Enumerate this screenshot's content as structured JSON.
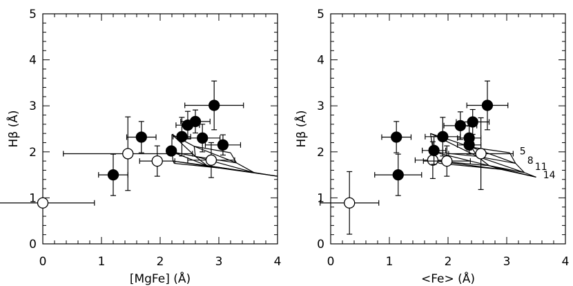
{
  "chart_data": [
    {
      "type": "scatter",
      "xlabel": "[MgFe] (Å)",
      "ylabel": "Hβ (Å)",
      "xlim": [
        0,
        4
      ],
      "ylim": [
        0,
        5
      ],
      "x_ticks": [
        "0",
        "1",
        "2",
        "3",
        "4"
      ],
      "y_ticks": [
        "0",
        "1",
        "2",
        "3",
        "4",
        "5"
      ],
      "filled_points": [
        {
          "x": 1.2,
          "y": 1.5,
          "xerr": 0.25,
          "yerr": 0.45
        },
        {
          "x": 1.68,
          "y": 2.32,
          "xerr": 0.25,
          "yerr": 0.34
        },
        {
          "x": 2.19,
          "y": 2.02,
          "xerr": 0.08,
          "yerr": 0.08
        },
        {
          "x": 2.37,
          "y": 2.33,
          "xerr": 0.15,
          "yerr": 0.42
        },
        {
          "x": 2.47,
          "y": 2.58,
          "xerr": 0.2,
          "yerr": 0.3
        },
        {
          "x": 2.6,
          "y": 2.66,
          "xerr": 0.25,
          "yerr": 0.25
        },
        {
          "x": 2.72,
          "y": 2.3,
          "xerr": 0.3,
          "yerr": 0.3
        },
        {
          "x": 2.92,
          "y": 3.01,
          "xerr": 0.5,
          "yerr": 0.53
        },
        {
          "x": 3.07,
          "y": 2.15,
          "xerr": 0.3,
          "yerr": 0.22
        }
      ],
      "open_points": [
        {
          "x": 0.0,
          "y": 0.89,
          "xerr": 0.88,
          "yerr": 0.0
        },
        {
          "x": 1.45,
          "y": 1.96,
          "xerr": 1.1,
          "yerr": 0.8
        },
        {
          "x": 1.95,
          "y": 1.8,
          "xerr": 0.3,
          "yerr": 0.33
        },
        {
          "x": 2.87,
          "y": 1.82,
          "xerr": 0.4,
          "yerr": 0.38
        }
      ],
      "model_grid": {
        "rows": [
          [
            [
              2.2,
              2.38
            ],
            [
              2.58,
              2.12
            ],
            [
              3.2,
              1.98
            ]
          ],
          [
            [
              2.2,
              2.0
            ],
            [
              2.6,
              1.9
            ],
            [
              3.3,
              1.76
            ]
          ],
          [
            [
              2.22,
              1.8
            ],
            [
              2.8,
              1.7
            ],
            [
              3.6,
              1.55
            ]
          ],
          [
            [
              2.24,
              1.75
            ],
            [
              3.0,
              1.65
            ],
            [
              4.0,
              1.47
            ]
          ]
        ]
      }
    },
    {
      "type": "scatter",
      "xlabel": "<Fe> (Å)",
      "ylabel": "Hβ (Å)",
      "xlim": [
        0,
        4
      ],
      "ylim": [
        0,
        5
      ],
      "x_ticks": [
        "0",
        "1",
        "2",
        "3",
        "4"
      ],
      "y_ticks": [
        "0",
        "1",
        "2",
        "3",
        "4",
        "5"
      ],
      "filled_points": [
        {
          "x": 1.15,
          "y": 1.5,
          "xerr": 0.4,
          "yerr": 0.45
        },
        {
          "x": 1.12,
          "y": 2.32,
          "xerr": 0.25,
          "yerr": 0.34
        },
        {
          "x": 1.76,
          "y": 2.03,
          "xerr": 0.2,
          "yerr": 0.3
        },
        {
          "x": 1.91,
          "y": 2.33,
          "xerr": 0.3,
          "yerr": 0.42
        },
        {
          "x": 2.21,
          "y": 2.57,
          "xerr": 0.28,
          "yerr": 0.3
        },
        {
          "x": 2.42,
          "y": 2.65,
          "xerr": 0.28,
          "yerr": 0.27
        },
        {
          "x": 2.36,
          "y": 2.3,
          "xerr": 0.2,
          "yerr": 0.26
        },
        {
          "x": 2.36,
          "y": 2.15,
          "xerr": 0.2,
          "yerr": 0.2
        },
        {
          "x": 2.67,
          "y": 3.01,
          "xerr": 0.35,
          "yerr": 0.53
        }
      ],
      "open_points": [
        {
          "x": 0.32,
          "y": 0.89,
          "xerr": 0.5,
          "yerr": 0.68
        },
        {
          "x": 1.74,
          "y": 1.82,
          "xerr": 0.3,
          "yerr": 0.4
        },
        {
          "x": 1.98,
          "y": 1.8,
          "xerr": 0.4,
          "yerr": 0.33
        },
        {
          "x": 2.56,
          "y": 1.96,
          "xerr": 0.55,
          "yerr": 0.78
        }
      ],
      "model_grid": {
        "rows": [
          [
            [
              1.7,
              2.4
            ],
            [
              2.4,
              2.1
            ],
            [
              3.05,
              1.98
            ]
          ],
          [
            [
              1.75,
              2.0
            ],
            [
              2.5,
              1.9
            ],
            [
              3.15,
              1.75
            ]
          ],
          [
            [
              1.8,
              1.8
            ],
            [
              2.7,
              1.7
            ],
            [
              3.3,
              1.55
            ]
          ],
          [
            [
              1.85,
              1.75
            ],
            [
              2.9,
              1.62
            ],
            [
              3.5,
              1.45
            ]
          ]
        ]
      },
      "grid_labels": [
        {
          "text": "5",
          "x": 3.22,
          "y": 2.02
        },
        {
          "text": "8",
          "x": 3.35,
          "y": 1.82
        },
        {
          "text": "11",
          "x": 3.48,
          "y": 1.68
        },
        {
          "text": "14",
          "x": 3.62,
          "y": 1.5
        }
      ]
    }
  ]
}
